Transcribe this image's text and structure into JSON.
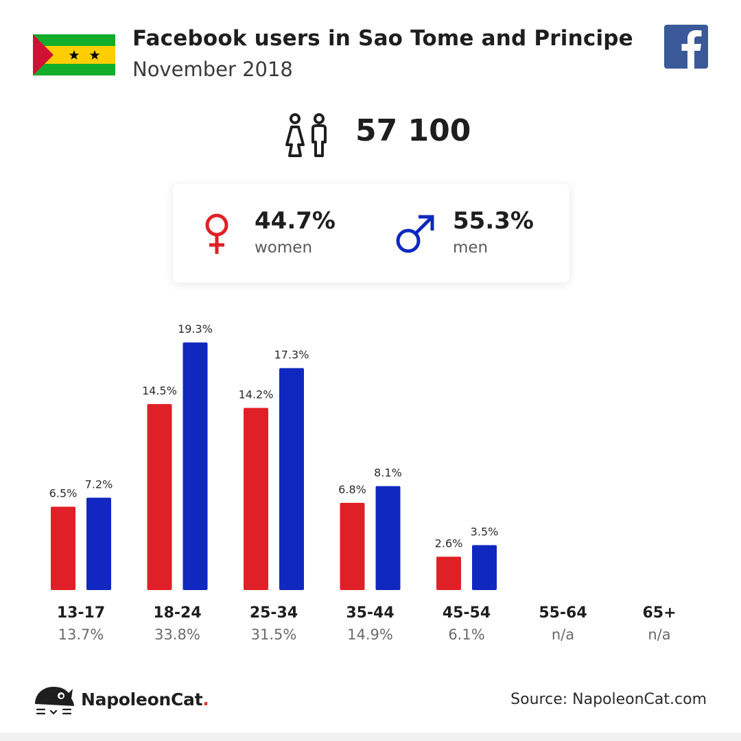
{
  "header": {
    "title": "Facebook users in Sao Tome and Principe",
    "subtitle": "November 2018"
  },
  "flag": {
    "name": "sao-tome-and-principe-flag",
    "colors": {
      "green": "#12ad2b",
      "yellow": "#ffce00",
      "red": "#d21034",
      "star": "#000000"
    }
  },
  "summary": {
    "users_icon": "people-icon",
    "total_users": "57 100"
  },
  "gender": {
    "women": {
      "icon": "female-icon",
      "percent": "44.7%",
      "label": "women",
      "color": "#e02027"
    },
    "men": {
      "icon": "male-icon",
      "percent": "55.3%",
      "label": "men",
      "color": "#1028c0"
    }
  },
  "chart_data": {
    "type": "bar",
    "title": "",
    "xlabel": "",
    "ylabel": "",
    "ylim": [
      0,
      20
    ],
    "grid": false,
    "categories": [
      "13-17",
      "18-24",
      "25-34",
      "35-44",
      "45-54",
      "55-64",
      "65+"
    ],
    "series": [
      {
        "name": "women",
        "color": "#e02027",
        "values": [
          6.5,
          14.5,
          14.2,
          6.8,
          2.6,
          null,
          null
        ],
        "labels": [
          "6.5%",
          "14.5%",
          "14.2%",
          "6.8%",
          "2.6%",
          "",
          ""
        ]
      },
      {
        "name": "men",
        "color": "#1028c0",
        "values": [
          7.2,
          19.3,
          17.3,
          8.1,
          3.5,
          null,
          null
        ],
        "labels": [
          "7.2%",
          "19.3%",
          "17.3%",
          "8.1%",
          "3.5%",
          "",
          ""
        ]
      }
    ],
    "category_totals": [
      "13.7%",
      "33.8%",
      "31.5%",
      "14.9%",
      "6.1%",
      "n/a",
      "n/a"
    ]
  },
  "footer": {
    "brand_icon": "napoleoncat-logo-icon",
    "brand_name": "NapoleonCat",
    "brand_dot": ".",
    "source": "Source: NapoleonCat.com"
  }
}
